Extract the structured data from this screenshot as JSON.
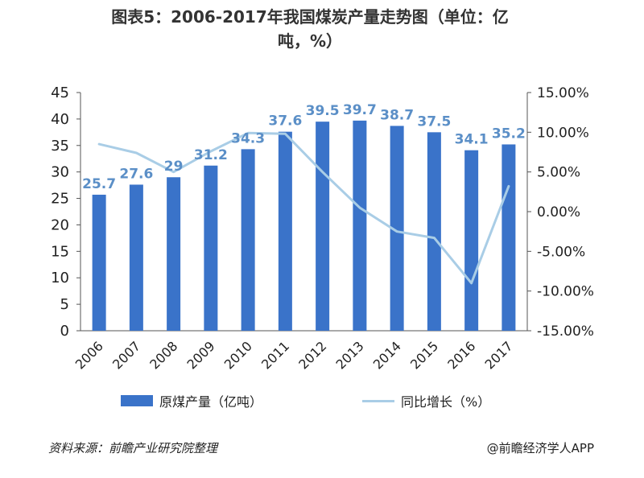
{
  "title_line1": "图表5：2006-2017年我国煤炭产量走势图（单位：亿",
  "title_line2": "吨，%）",
  "legend": {
    "bar_label": "原煤产量（亿吨）",
    "line_label": "同比增长（%）"
  },
  "footer": {
    "source": "资料来源：前瞻产业研究院整理",
    "credit": "@前瞻经济学人APP"
  },
  "colors": {
    "bar": "#3a73c9",
    "line": "#a9cde6",
    "data_label": "#5b8fc7"
  },
  "chart_data": {
    "type": "bar",
    "categories": [
      "2006",
      "2007",
      "2008",
      "2009",
      "2010",
      "2011",
      "2012",
      "2013",
      "2014",
      "2015",
      "2016",
      "2017"
    ],
    "series": [
      {
        "name": "原煤产量（亿吨）",
        "type": "bar",
        "axis": "left",
        "values": [
          25.7,
          27.6,
          29,
          31.2,
          34.3,
          37.6,
          39.5,
          39.7,
          38.7,
          37.5,
          34.1,
          35.2
        ]
      },
      {
        "name": "同比增长（%）",
        "type": "line",
        "axis": "right",
        "values": [
          8.5,
          7.4,
          5.0,
          7.6,
          9.9,
          9.8,
          5.0,
          0.5,
          -2.5,
          -3.3,
          -9.0,
          3.2
        ]
      }
    ],
    "data_labels": [
      "25.7",
      "27.6",
      "29",
      "31.2",
      "34.3",
      "37.6",
      "39.5",
      "39.7",
      "38.7",
      "37.5",
      "34.1",
      "35.2"
    ],
    "y_left": {
      "ylim": [
        0,
        45
      ],
      "ticks": [
        "0",
        "5",
        "10",
        "15",
        "20",
        "25",
        "30",
        "35",
        "40",
        "45"
      ]
    },
    "y_right": {
      "ylim": [
        -15,
        15
      ],
      "ticks": [
        "-15.00%",
        "-10.00%",
        "-5.00%",
        "0.00%",
        "5.00%",
        "10.00%",
        "15.00%"
      ]
    },
    "grid": false,
    "legend_position": "bottom"
  }
}
